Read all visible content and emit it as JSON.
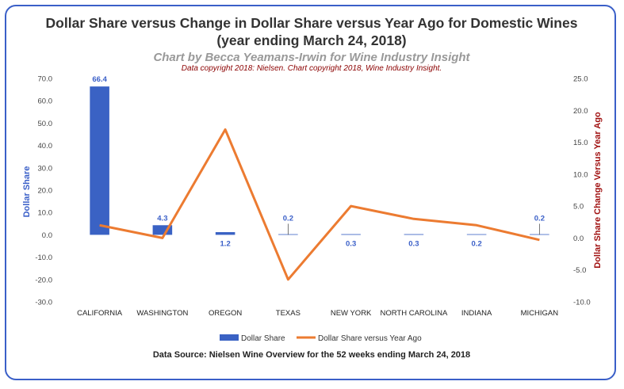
{
  "chart_data": {
    "type": "bar",
    "title_line1": "Dollar Share versus Change in Dollar Share versus Year Ago for Domestic Wines",
    "title_line2": "(year ending March 24, 2018)",
    "subtitle": "Chart by Becca Yeamans-Irwin for Wine Industry Insight",
    "copyright": "Data copyright 2018: Nielsen. Chart copyright 2018, Wine Industry Insight.",
    "ylabel_left": "Dollar Share",
    "ylabel_right": "Dollar Share Change Versus Year Ago",
    "ylim_left": [
      -30,
      70
    ],
    "ylim_right": [
      -10,
      25
    ],
    "yticks_left": [
      "70.0",
      "60.0",
      "50.0",
      "40.0",
      "30.0",
      "20.0",
      "10.0",
      "0.0",
      "-10.0",
      "-20.0",
      "-30.0"
    ],
    "yticks_right": [
      "25.0",
      "20.0",
      "15.0",
      "10.0",
      "5.0",
      "0.0",
      "-5.0",
      "-10.0"
    ],
    "categories": [
      "CALIFORNIA",
      "WASHINGTON",
      "OREGON",
      "TEXAS",
      "NEW YORK",
      "NORTH CAROLINA",
      "INDIANA",
      "MICHIGAN"
    ],
    "series": [
      {
        "name": "Dollar Share",
        "type": "bar",
        "axis": "left",
        "color": "#3a62c4",
        "values": [
          66.4,
          4.3,
          1.2,
          0.2,
          0.3,
          0.3,
          0.2,
          0.2
        ],
        "labels": [
          "66.4",
          "4.3",
          "1.2",
          "0.2",
          "0.3",
          "0.3",
          "0.2",
          "0.2"
        ]
      },
      {
        "name": "Dollar Share versus Year Ago",
        "type": "line",
        "axis": "right",
        "color": "#ec7b31",
        "values": [
          2.0,
          0.0,
          17.0,
          -6.5,
          5.0,
          3.0,
          2.0,
          -0.3
        ]
      }
    ],
    "legend_position": "bottom",
    "grid": false,
    "source": "Data Source: Nielsen Wine Overview for the 52 weeks ending March 24, 2018"
  }
}
